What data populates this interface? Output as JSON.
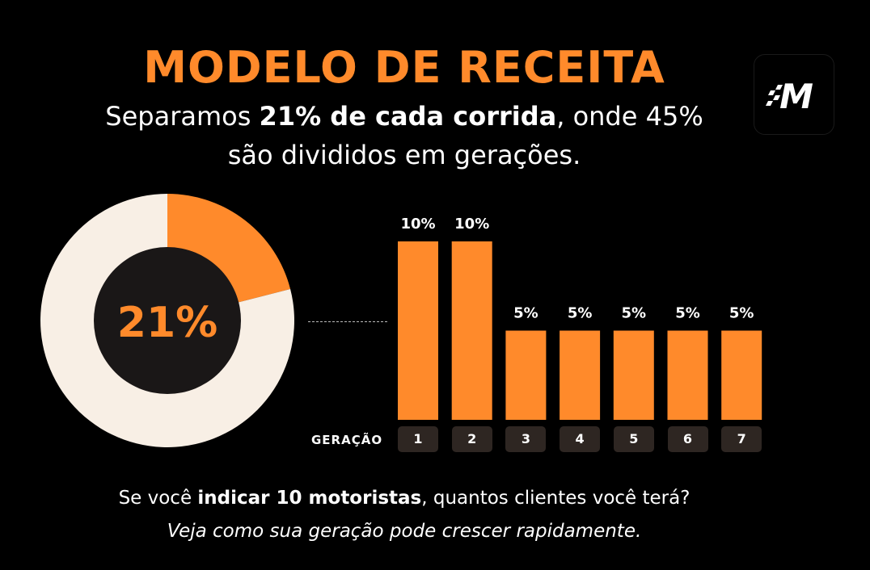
{
  "title": "MODELO DE RECEITA",
  "subtitle": {
    "line1_pre": "Separamos ",
    "line1_bold": "21% de cada corrida",
    "line1_post": ", onde 45%",
    "line2": "são divididos em gerações."
  },
  "logo": {
    "text": "M",
    "icon": "checkered-flag-m-logo"
  },
  "footer": {
    "line1_pre": "Se você ",
    "line1_bold": "indicar 10 motoristas",
    "line1_post": ", quantos clientes você terá?",
    "line2": "Veja como sua geração pode crescer rapidamente."
  },
  "colors": {
    "accent": "#ff8a2b",
    "donut_rest": "#f8efe5",
    "donut_center": "#1a1717",
    "gen_box": "#2e2622",
    "background": "#000000"
  },
  "chart_data": [
    {
      "type": "pie",
      "center_label": "21%",
      "slices": [
        {
          "label": "",
          "value": 21,
          "color": "#ff8a2b"
        },
        {
          "label": "",
          "value": 79,
          "color": "#f8efe5"
        }
      ]
    },
    {
      "type": "bar",
      "xlabel": "GERAÇÃO",
      "categories": [
        "1",
        "2",
        "3",
        "4",
        "5",
        "6",
        "7"
      ],
      "values": [
        10,
        10,
        5,
        5,
        5,
        5,
        5
      ],
      "data_labels": [
        "10%",
        "10%",
        "5%",
        "5%",
        "5%",
        "5%",
        "5%"
      ],
      "grid": false
    }
  ]
}
